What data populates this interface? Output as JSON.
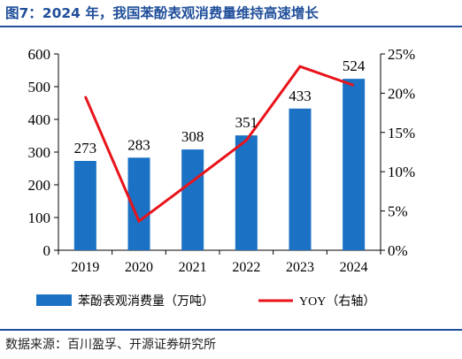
{
  "title": "图7：2024 年，我国苯酚表观消费量维持高速增长",
  "source": "数据来源：百川盈孚、开源证券研究所",
  "colors": {
    "accent": "#1f4e9a",
    "bar": "#1b72c4",
    "line": "#e8131b"
  },
  "chart_data": {
    "type": "bar",
    "categories": [
      "2019",
      "2020",
      "2021",
      "2022",
      "2023",
      "2024"
    ],
    "series": [
      {
        "name": "苯酚表观消费量（万吨）",
        "type": "bar",
        "axis": "left",
        "values": [
          273,
          283,
          308,
          351,
          433,
          524
        ]
      },
      {
        "name": "YOY（右轴）",
        "type": "line",
        "axis": "right",
        "values": [
          19.6,
          3.7,
          8.8,
          14.0,
          23.4,
          21.0
        ]
      }
    ],
    "data_labels": [
      "273",
      "283",
      "308",
      "351",
      "433",
      "524"
    ],
    "ylim": [
      0,
      600
    ],
    "y_ticks": [
      "0",
      "100",
      "200",
      "300",
      "400",
      "500",
      "600"
    ],
    "y2lim": [
      0,
      25
    ],
    "y2_ticks": [
      "0%",
      "5%",
      "10%",
      "15%",
      "20%",
      "25%"
    ],
    "legend": [
      {
        "label": "苯酚表观消费量（万吨）",
        "kind": "bar"
      },
      {
        "label": "YOY（右轴）",
        "kind": "line"
      }
    ],
    "legend_position": "bottom",
    "grid": false
  }
}
